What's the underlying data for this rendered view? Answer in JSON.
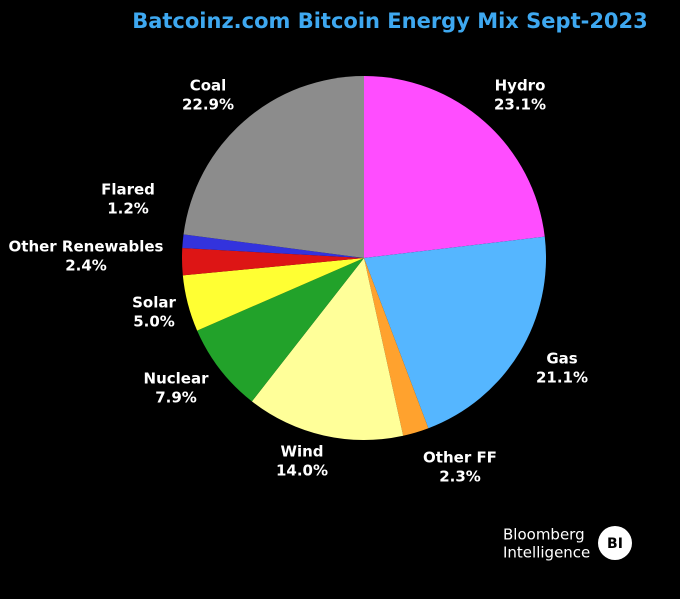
{
  "chart_data": {
    "type": "pie",
    "title": "Batcoinz.com Bitcoin Energy Mix Sept-2023",
    "categories": [
      "Hydro",
      "Gas",
      "Other FF",
      "Wind",
      "Nuclear",
      "Solar",
      "Other Renewables",
      "Flared",
      "Coal"
    ],
    "values": [
      23.1,
      21.1,
      2.3,
      14.0,
      7.9,
      5.0,
      2.4,
      1.2,
      22.9
    ],
    "value_labels": [
      "23.1%",
      "21.1%",
      "2.3%",
      "14.0%",
      "7.9%",
      "5.0%",
      "2.4%",
      "1.2%",
      "22.9%"
    ],
    "colors": [
      "#ff4dff",
      "#55b6ff",
      "#ffa22e",
      "#ffff99",
      "#22a22a",
      "#ffff33",
      "#dd1515",
      "#3333dd",
      "#8c8c8c"
    ]
  },
  "footer": {
    "brand_line1": "Bloomberg",
    "brand_line2": "Intelligence",
    "logo": "BI"
  }
}
